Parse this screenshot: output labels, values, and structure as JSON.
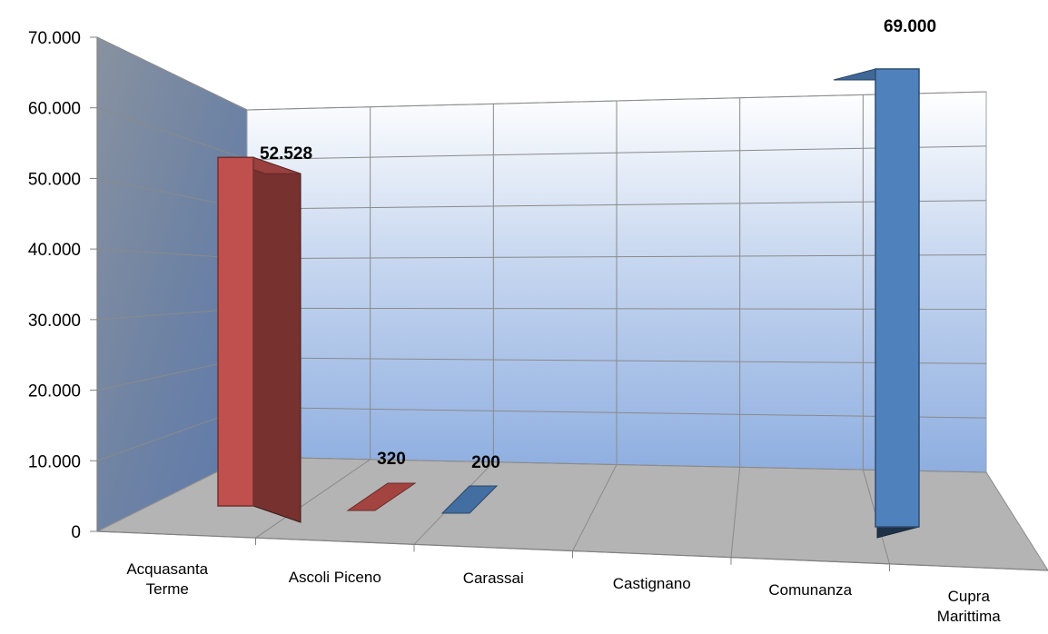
{
  "chart_data": {
    "type": "bar",
    "style": "3d-column",
    "categories": [
      "Acquasanta Terme",
      "Ascoli Piceno",
      "Carassai",
      "Castignano",
      "Comunanza",
      "Cupra Marittima"
    ],
    "values": [
      52528,
      320,
      200,
      0,
      0,
      69000
    ],
    "data_labels": [
      "52.528",
      "320",
      "200",
      "",
      "",
      "69.000"
    ],
    "bar_colors": [
      "#c0504d",
      "#c0504d",
      "#4f81bd",
      null,
      null,
      "#4f81bd"
    ],
    "yticks": [
      "0",
      "10.000",
      "20.000",
      "30.000",
      "40.000",
      "50.000",
      "60.000",
      "70.000"
    ],
    "ylim": [
      0,
      70000
    ],
    "title": "",
    "xlabel": "",
    "ylabel": "",
    "grid": true,
    "legend": "none"
  }
}
